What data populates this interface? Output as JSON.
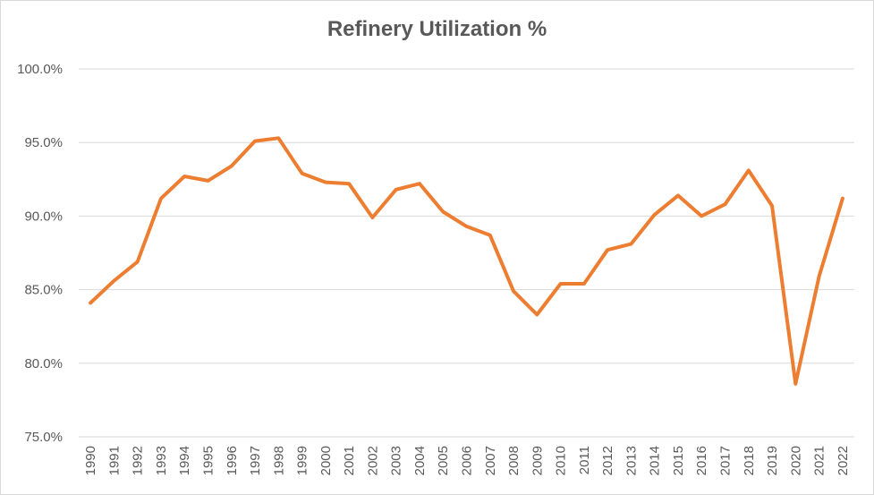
{
  "chart_data": {
    "type": "line",
    "title": "Refinery Utilization %",
    "xlabel": "",
    "ylabel": "",
    "ylim": [
      75,
      100
    ],
    "y_ticks": [
      "75.0%",
      "80.0%",
      "85.0%",
      "90.0%",
      "95.0%",
      "100.0%"
    ],
    "y_tick_values": [
      75,
      80,
      85,
      90,
      95,
      100
    ],
    "categories": [
      "1990",
      "1991",
      "1992",
      "1993",
      "1994",
      "1995",
      "1996",
      "1997",
      "1998",
      "1999",
      "2000",
      "2001",
      "2002",
      "2003",
      "2004",
      "2005",
      "2006",
      "2007",
      "2008",
      "2009",
      "2010",
      "2011",
      "2012",
      "2013",
      "2014",
      "2015",
      "2016",
      "2017",
      "2018",
      "2019",
      "2020",
      "2021",
      "2022"
    ],
    "series": [
      {
        "name": "",
        "color": "#ed7d31",
        "values": [
          84.1,
          85.6,
          86.9,
          91.2,
          92.7,
          92.4,
          93.4,
          95.1,
          95.3,
          92.9,
          92.3,
          92.2,
          89.9,
          91.8,
          92.2,
          90.3,
          89.3,
          88.7,
          84.9,
          83.3,
          85.4,
          85.4,
          87.7,
          88.1,
          90.1,
          91.4,
          90.0,
          90.8,
          93.1,
          90.7,
          78.6,
          85.9,
          91.2
        ]
      }
    ],
    "grid": true,
    "legend": "none"
  }
}
